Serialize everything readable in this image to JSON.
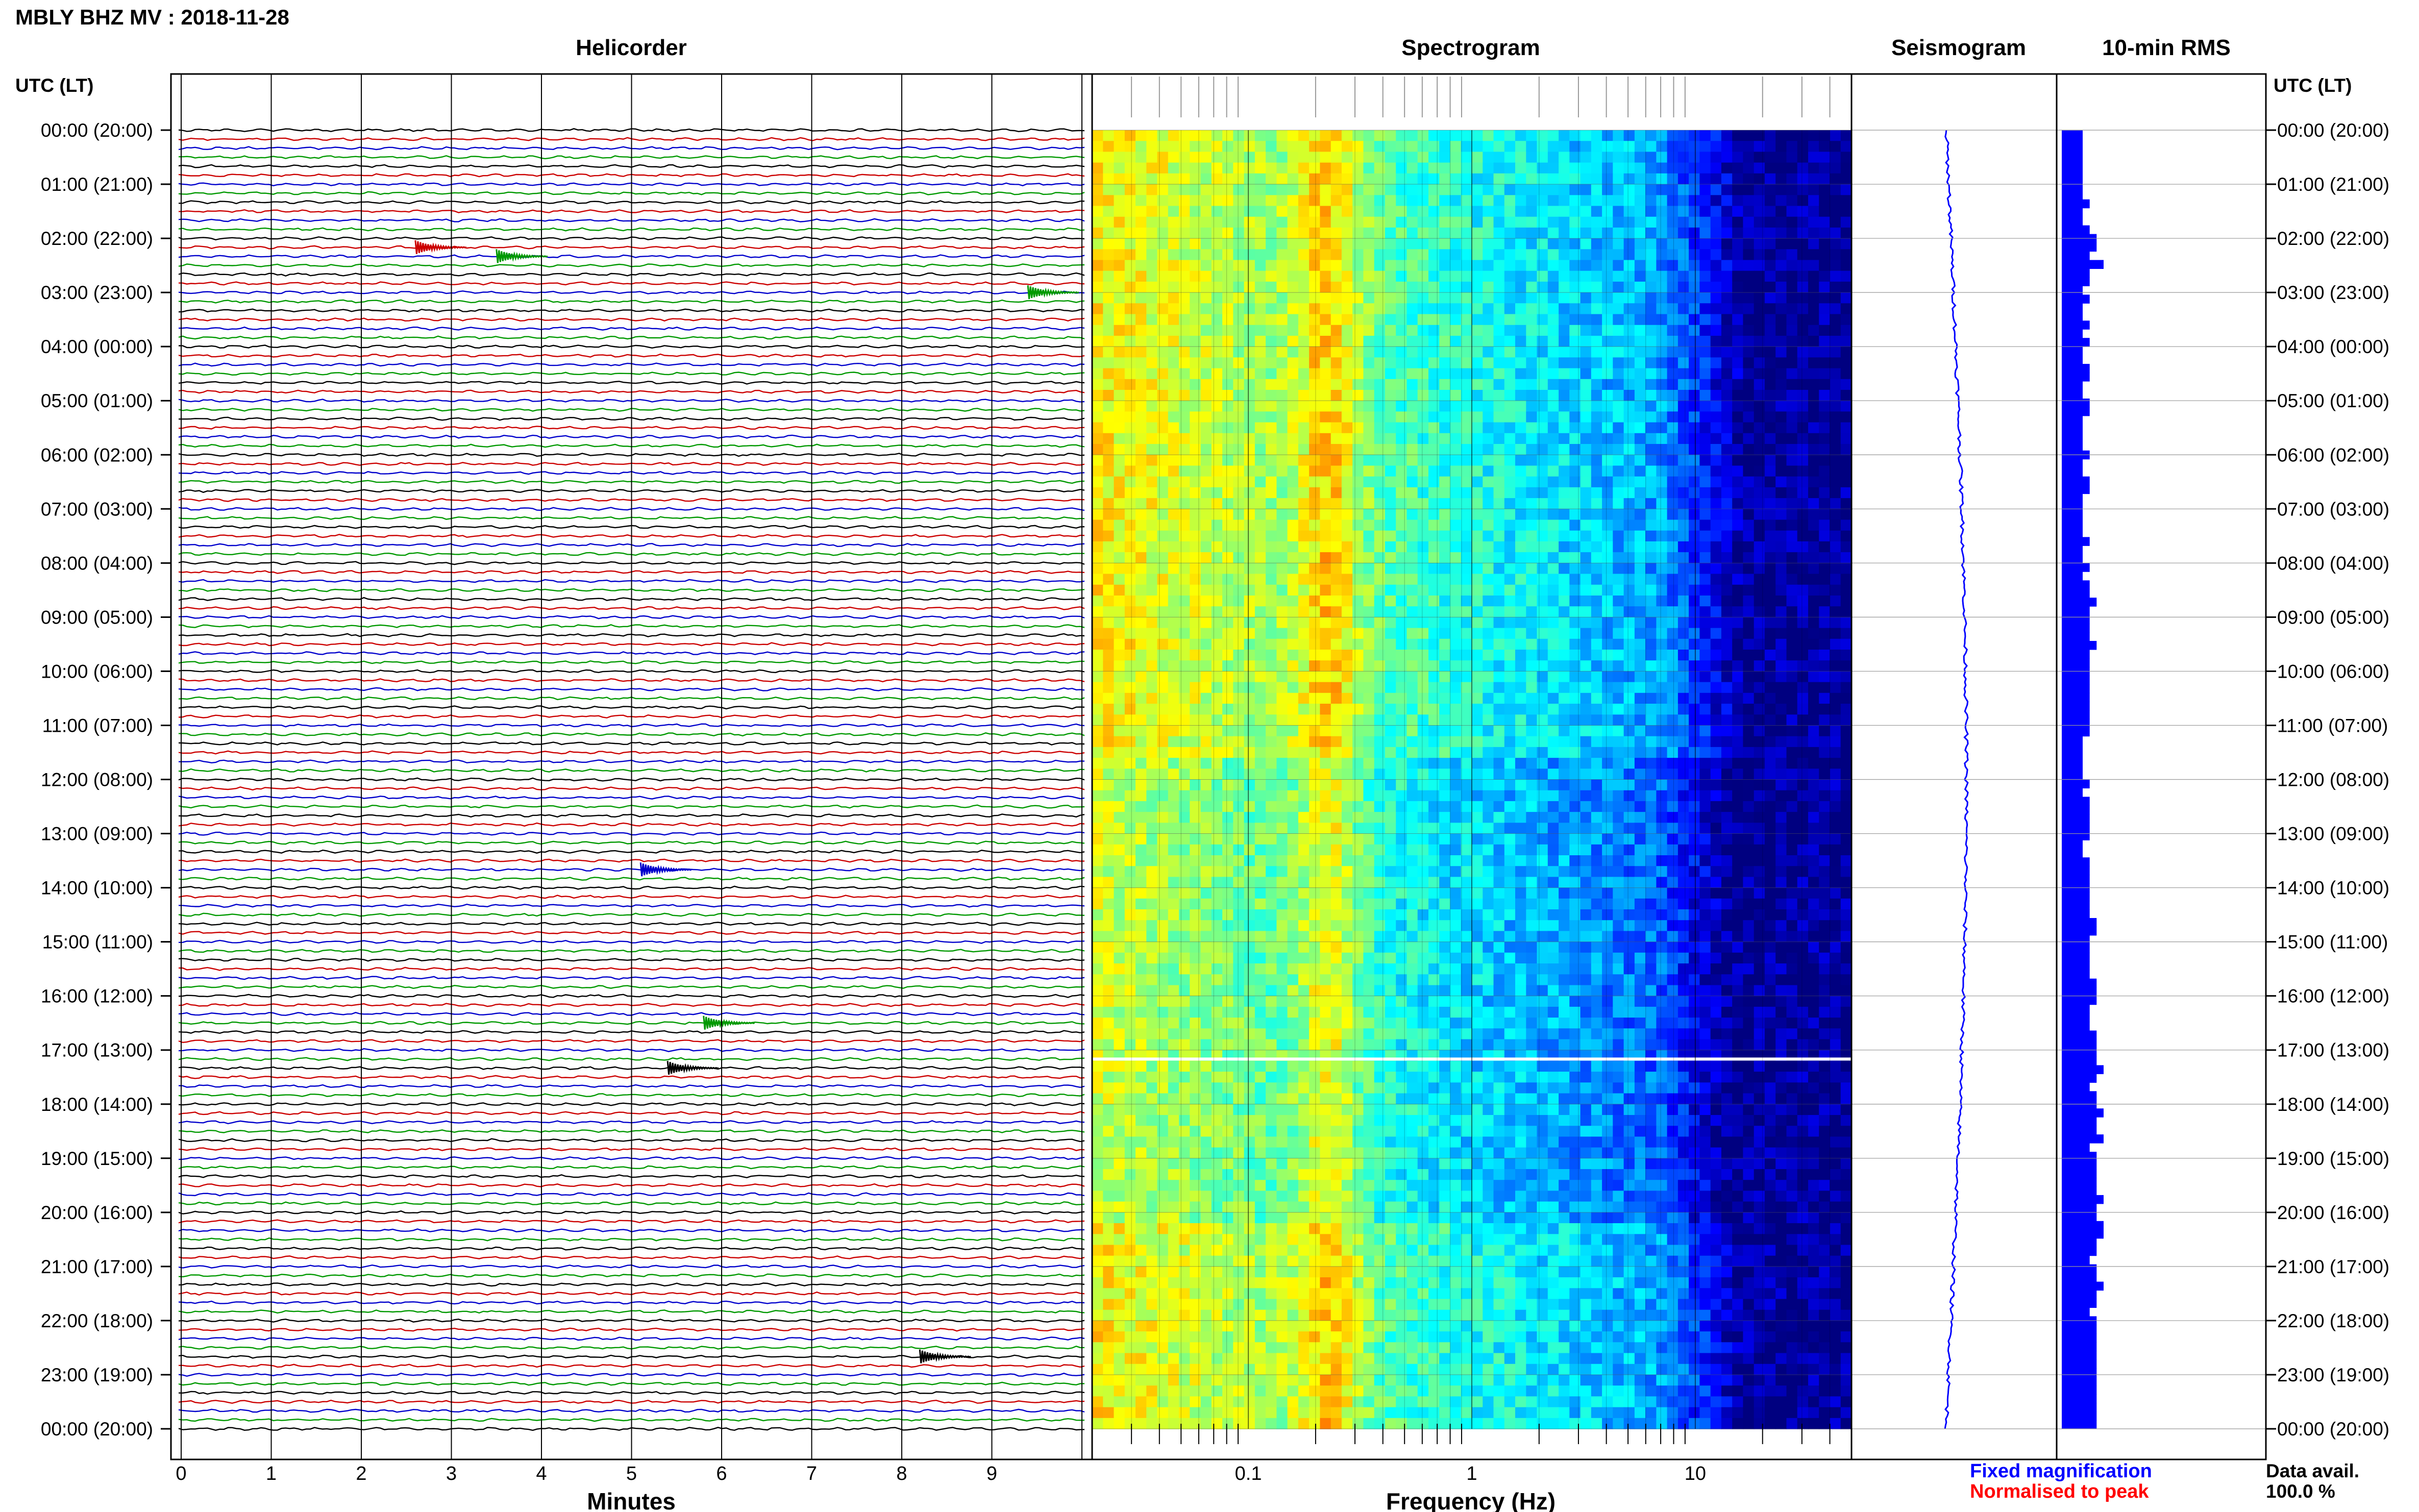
{
  "header": {
    "title": "MBLY BHZ MV : 2018-11-28",
    "utc_label_left": "UTC (LT)",
    "utc_label_right": "UTC (LT)"
  },
  "panels": {
    "helicorder": "Helicorder",
    "spectrogram": "Spectrogram",
    "seismogram": "Seismogram",
    "rms": "10-min RMS"
  },
  "axes": {
    "minutes_label": "Minutes",
    "minutes_ticks": [
      "0",
      "1",
      "2",
      "3",
      "4",
      "5",
      "6",
      "7",
      "8",
      "9"
    ],
    "frequency_label": "Frequency (Hz)",
    "frequency_ticks": [
      "0.1",
      "1",
      "10"
    ]
  },
  "time_labels": [
    "00:00 (20:00)",
    "01:00 (21:00)",
    "02:00 (22:00)",
    "03:00 (23:00)",
    "04:00 (00:00)",
    "05:00 (01:00)",
    "06:00 (02:00)",
    "07:00 (03:00)",
    "08:00 (04:00)",
    "09:00 (05:00)",
    "10:00 (06:00)",
    "11:00 (07:00)",
    "12:00 (08:00)",
    "13:00 (09:00)",
    "14:00 (10:00)",
    "15:00 (11:00)",
    "16:00 (12:00)",
    "17:00 (13:00)",
    "18:00 (14:00)",
    "19:00 (15:00)",
    "20:00 (16:00)",
    "21:00 (17:00)",
    "22:00 (18:00)",
    "23:00 (19:00)",
    "00:00 (20:00)"
  ],
  "legend": {
    "fixed": "Fixed magnification",
    "normalised": "Normalised to peak",
    "avail_label": "Data avail.",
    "avail_value": "100.0 %"
  },
  "colors": {
    "fixed": "#0000ff",
    "normalised": "#ff0000",
    "traces": [
      "#000000",
      "#cc0000",
      "#0000cc",
      "#009900"
    ],
    "rms_bar": "#0000ff",
    "seismogram": "#0000ff"
  },
  "chart_data": {
    "type": "heatmap",
    "helicorder": {
      "xlabel": "Minutes",
      "xlim": [
        0,
        10
      ],
      "lines_per_hour": 6,
      "events": [
        {
          "time": "02:10",
          "minute": 2.6,
          "color": "red"
        },
        {
          "time": "02:20",
          "minute": 3.5,
          "color": "green"
        },
        {
          "time": "03:00",
          "minute": 9.4,
          "color": "green"
        },
        {
          "time": "13:40",
          "minute": 5.1,
          "color": "blue"
        },
        {
          "time": "16:30",
          "minute": 5.8,
          "color": "green"
        },
        {
          "time": "17:20",
          "minute": 5.4,
          "color": "black"
        },
        {
          "time": "22:40",
          "minute": 8.2,
          "color": "black"
        }
      ]
    },
    "spectrogram": {
      "xlabel": "Frequency (Hz)",
      "xscale": "log",
      "xlim": [
        0.02,
        50
      ],
      "colormap": "jet",
      "gap_time": "17:10"
    },
    "rms": {
      "interval_minutes": 10,
      "values": [
        3,
        3,
        3,
        3,
        3,
        3,
        3,
        3,
        4,
        3,
        3,
        4,
        5,
        5,
        4,
        6,
        4,
        4,
        3,
        4,
        3,
        3,
        4,
        3,
        4,
        3,
        3,
        4,
        4,
        3,
        3,
        4,
        4,
        3,
        3,
        3,
        3,
        4,
        3,
        3,
        4,
        4,
        3,
        3,
        3,
        3,
        3,
        4,
        3,
        3,
        4,
        3,
        4,
        4,
        5,
        4,
        4,
        4,
        4,
        5,
        4,
        4,
        4,
        4,
        4,
        4,
        4,
        4,
        4,
        4,
        3,
        3,
        3,
        3,
        3,
        4,
        3,
        4,
        4,
        4,
        4,
        4,
        3,
        3,
        4,
        4,
        4,
        4,
        4,
        4,
        4,
        5,
        5,
        4,
        4,
        4,
        4,
        4,
        5,
        5,
        5,
        4,
        4,
        4,
        5,
        5,
        5,
        5,
        6,
        5,
        4,
        5,
        5,
        6,
        5,
        5,
        6,
        4,
        5,
        5,
        5,
        5,
        5,
        6,
        5,
        5,
        6,
        6,
        5,
        5,
        4,
        5,
        5,
        6,
        5,
        5,
        4,
        5,
        5,
        5,
        5,
        5,
        5,
        5,
        5,
        5,
        5,
        5,
        5,
        5
      ]
    },
    "seismogram": {
      "color": "blue"
    }
  }
}
